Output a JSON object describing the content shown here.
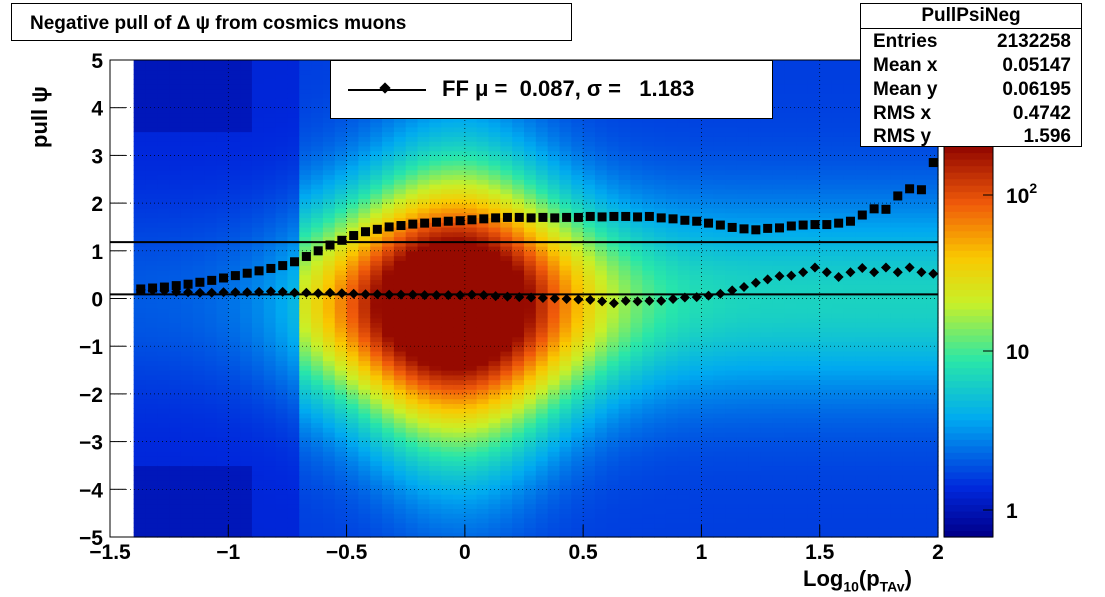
{
  "title": "Negative pull of Δ ψ from cosmics muons",
  "stats": {
    "name": "PullPsiNeg",
    "rows": [
      {
        "k": "Entries",
        "v": "2132258"
      },
      {
        "k": "Mean x",
        "v": "0.05147"
      },
      {
        "k": "Mean y",
        "v": "0.06195"
      },
      {
        "k": "RMS x",
        "v": "0.4742"
      },
      {
        "k": "RMS y",
        "v": "1.596"
      }
    ]
  },
  "legend": {
    "text": "FF μ =  0.087, σ =   1.183"
  },
  "axes": {
    "ylabel": "pull ψ",
    "xlabel_main": "Log",
    "xlabel_sub": "10",
    "xlabel_rest": "(p",
    "xlabel_sub2": "TAv",
    "xlabel_end": ")"
  },
  "chart_data": {
    "type": "heatmap",
    "title": "Negative pull of Δ ψ from cosmics muons",
    "xlabel": "Log10(pTAv)",
    "ylabel": "pull ψ",
    "xlim": [
      -1.5,
      2.0
    ],
    "ylim": [
      -5,
      5
    ],
    "x_ticks": [
      "−1.5",
      "−1",
      "−0.5",
      "0",
      "0.5",
      "1",
      "1.5",
      "2"
    ],
    "y_ticks": [
      "−5",
      "−4",
      "−3",
      "−2",
      "−1",
      "0",
      "1",
      "2",
      "3",
      "4",
      "5"
    ],
    "z_scale": "log",
    "z_ticks": [
      "1",
      "10",
      "10^2"
    ],
    "grid": true,
    "hlines": [
      0.087,
      1.183
    ],
    "mean_series": {
      "name": "mean",
      "x": [
        -1.37,
        -1.32,
        -1.27,
        -1.22,
        -1.17,
        -1.12,
        -1.07,
        -1.02,
        -0.97,
        -0.92,
        -0.87,
        -0.82,
        -0.77,
        -0.72,
        -0.67,
        -0.62,
        -0.57,
        -0.52,
        -0.47,
        -0.42,
        -0.37,
        -0.32,
        -0.27,
        -0.22,
        -0.17,
        -0.12,
        -0.07,
        -0.02,
        0.03,
        0.08,
        0.13,
        0.18,
        0.23,
        0.28,
        0.33,
        0.38,
        0.43,
        0.48,
        0.53,
        0.58,
        0.63,
        0.68,
        0.73,
        0.78,
        0.83,
        0.88,
        0.93,
        0.98,
        1.03,
        1.08,
        1.13,
        1.18,
        1.23,
        1.28,
        1.33,
        1.38,
        1.43,
        1.48,
        1.53,
        1.58,
        1.63,
        1.68,
        1.73,
        1.78,
        1.83,
        1.88,
        1.93,
        1.98
      ],
      "y": [
        0.18,
        0.17,
        0.16,
        0.14,
        0.13,
        0.12,
        0.12,
        0.13,
        0.13,
        0.13,
        0.14,
        0.15,
        0.14,
        0.12,
        0.12,
        0.11,
        0.12,
        0.11,
        0.1,
        0.09,
        0.09,
        0.08,
        0.08,
        0.08,
        0.07,
        0.07,
        0.07,
        0.07,
        0.08,
        0.07,
        0.05,
        0.04,
        0.03,
        0.02,
        0.01,
        0.0,
        -0.01,
        -0.02,
        -0.03,
        -0.06,
        -0.1,
        -0.05,
        -0.06,
        -0.05,
        -0.05,
        -0.01,
        0.02,
        0.03,
        0.06,
        0.1,
        0.17,
        0.24,
        0.33,
        0.4,
        0.47,
        0.48,
        0.55,
        0.65,
        0.55,
        0.45,
        0.55,
        0.64,
        0.55,
        0.65,
        0.55,
        0.65,
        0.55,
        0.52
      ]
    },
    "rms_series": {
      "name": "rms",
      "x": [
        -1.37,
        -1.32,
        -1.27,
        -1.22,
        -1.17,
        -1.12,
        -1.07,
        -1.02,
        -0.97,
        -0.92,
        -0.87,
        -0.82,
        -0.77,
        -0.72,
        -0.67,
        -0.62,
        -0.57,
        -0.52,
        -0.47,
        -0.42,
        -0.37,
        -0.32,
        -0.27,
        -0.22,
        -0.17,
        -0.12,
        -0.07,
        -0.02,
        0.03,
        0.08,
        0.13,
        0.18,
        0.23,
        0.28,
        0.33,
        0.38,
        0.43,
        0.48,
        0.53,
        0.58,
        0.63,
        0.68,
        0.73,
        0.78,
        0.83,
        0.88,
        0.93,
        0.98,
        1.03,
        1.08,
        1.13,
        1.18,
        1.23,
        1.28,
        1.33,
        1.38,
        1.43,
        1.48,
        1.53,
        1.58,
        1.63,
        1.68,
        1.73,
        1.78,
        1.83,
        1.88,
        1.93,
        1.98
      ],
      "y": [
        0.2,
        0.22,
        0.24,
        0.27,
        0.3,
        0.34,
        0.38,
        0.43,
        0.48,
        0.53,
        0.58,
        0.63,
        0.69,
        0.77,
        0.88,
        1.0,
        1.12,
        1.22,
        1.32,
        1.4,
        1.45,
        1.5,
        1.53,
        1.56,
        1.58,
        1.6,
        1.62,
        1.63,
        1.65,
        1.67,
        1.69,
        1.7,
        1.7,
        1.69,
        1.7,
        1.69,
        1.7,
        1.7,
        1.72,
        1.71,
        1.72,
        1.72,
        1.71,
        1.72,
        1.69,
        1.67,
        1.64,
        1.62,
        1.58,
        1.54,
        1.49,
        1.46,
        1.44,
        1.47,
        1.48,
        1.52,
        1.54,
        1.55,
        1.55,
        1.58,
        1.62,
        1.75,
        1.88,
        1.87,
        2.15,
        2.3,
        2.28,
        2.85
      ]
    }
  }
}
